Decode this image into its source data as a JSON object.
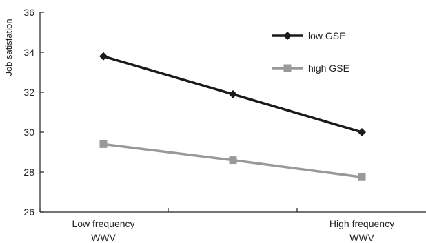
{
  "chart_data": {
    "type": "line",
    "ylabel": "Job satisfation",
    "xlabel": "",
    "ylim": [
      26,
      36
    ],
    "yticks": [
      "26",
      "28",
      "30",
      "32",
      "34",
      "36"
    ],
    "x_positions": [
      0,
      1,
      2
    ],
    "category_labels": [
      {
        "index": 0,
        "line1": "Low frequency",
        "line2": "WWV"
      },
      {
        "index": 2,
        "line1": "High frequency",
        "line2": "WWV"
      }
    ],
    "series": [
      {
        "name": "low  GSE",
        "values": [
          33.8,
          31.9,
          30.0
        ],
        "color": "#1a1a1a",
        "marker": "diamond"
      },
      {
        "name": "high  GSE",
        "values": [
          29.4,
          28.6,
          27.75
        ],
        "color": "#999999",
        "marker": "square"
      }
    ],
    "legend_position": "top-right",
    "grid": false
  }
}
